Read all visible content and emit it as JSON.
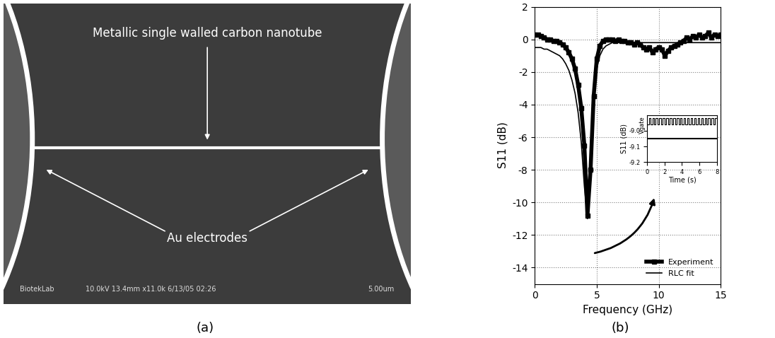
{
  "captions": [
    "(a)",
    "(b)"
  ],
  "image": {
    "nanotube_label": "Metallic single walled carbon nanotube",
    "electrodes_label": "Au electrodes",
    "info_bar": [
      "BiotekLab",
      "10.0kV 13.4mm x11.0k 6/13/05 02:26",
      "5.00um"
    ]
  },
  "chart_data": {
    "type": "line",
    "xlabel": "Frequency (GHz)",
    "ylabel": "S11 (dB)",
    "xlim": [
      0,
      15
    ],
    "xticks": [
      0,
      5,
      10,
      15
    ],
    "ylim": [
      -15,
      2
    ],
    "yticks": [
      -14,
      -12,
      -10,
      -8,
      -6,
      -4,
      -2,
      0,
      2
    ],
    "grid": true,
    "legend": "lower right",
    "x": [
      0,
      0.25,
      0.5,
      0.75,
      1,
      1.25,
      1.5,
      1.75,
      2,
      2.25,
      2.5,
      2.75,
      3,
      3.25,
      3.5,
      3.75,
      4,
      4.25,
      4.5,
      4.75,
      5,
      5.25,
      5.5,
      5.75,
      6,
      6.25,
      6.5,
      6.75,
      7,
      7.25,
      7.5,
      7.75,
      8,
      8.25,
      8.5,
      8.75,
      9,
      9.25,
      9.5,
      9.75,
      10,
      10.25,
      10.5,
      10.75,
      11,
      11.25,
      11.5,
      11.75,
      12,
      12.25,
      12.5,
      12.75,
      13,
      13.25,
      13.5,
      13.75,
      14,
      14.25,
      14.5,
      14.75,
      15
    ],
    "series": [
      {
        "name": "Experiment",
        "color": "#000000",
        "marker": "square",
        "line_style": "solid",
        "values": [
          0.3,
          0.3,
          0.2,
          0.1,
          0.0,
          0.0,
          -0.1,
          -0.1,
          -0.2,
          -0.3,
          -0.5,
          -0.8,
          -1.2,
          -1.8,
          -2.8,
          -4.2,
          -6.5,
          -10.8,
          -8.0,
          -3.5,
          -1.2,
          -0.4,
          -0.1,
          0.0,
          0.0,
          0.0,
          -0.1,
          0.0,
          -0.1,
          -0.1,
          -0.2,
          -0.2,
          -0.3,
          -0.2,
          -0.3,
          -0.5,
          -0.6,
          -0.5,
          -0.8,
          -0.6,
          -0.5,
          -0.6,
          -1.0,
          -0.7,
          -0.5,
          -0.4,
          -0.3,
          -0.2,
          -0.1,
          0.1,
          0.0,
          0.2,
          0.1,
          0.3,
          0.1,
          0.2,
          0.4,
          0.1,
          0.3,
          0.2,
          0.3
        ]
      },
      {
        "name": "RLC fit",
        "color": "#000000",
        "marker": "none",
        "line_style": "solid",
        "values": [
          -0.5,
          -0.5,
          -0.5,
          -0.6,
          -0.6,
          -0.7,
          -0.8,
          -0.9,
          -1.0,
          -1.2,
          -1.5,
          -1.9,
          -2.5,
          -3.3,
          -4.5,
          -6.3,
          -9.0,
          -11.0,
          -7.5,
          -3.8,
          -1.8,
          -1.0,
          -0.6,
          -0.4,
          -0.3,
          -0.2,
          -0.2,
          -0.2,
          -0.2,
          -0.2,
          -0.2,
          -0.2,
          -0.2,
          -0.2,
          -0.2,
          -0.2,
          -0.2,
          -0.2,
          -0.2,
          -0.2,
          -0.2,
          -0.2,
          -0.2,
          -0.2,
          -0.2,
          -0.2,
          -0.2,
          -0.2,
          -0.2,
          -0.2,
          -0.2,
          -0.2,
          -0.2,
          -0.2,
          -0.2,
          -0.2,
          -0.2,
          -0.2,
          -0.2,
          -0.2,
          -0.2
        ]
      }
    ],
    "inset": {
      "type": "line",
      "xlabel": "Time (s)",
      "ylabel": "S11 (dB)",
      "xlim": [
        0,
        8
      ],
      "xticks": [
        0,
        2,
        4,
        6,
        8
      ],
      "ylim": [
        -9.2,
        -8.9
      ],
      "yticks": [
        -9.2,
        -9.1,
        -9.0
      ],
      "x": [
        0,
        0.2,
        0.4,
        0.6,
        0.8,
        1.0,
        1.2,
        1.4,
        1.6,
        1.8,
        2.0,
        2.2,
        2.4,
        2.6,
        2.8,
        3.0,
        3.2,
        3.4,
        3.6,
        3.8,
        4.0,
        4.2,
        4.4,
        4.6,
        4.8,
        5.0,
        5.2,
        5.4,
        5.6,
        5.8,
        6.0,
        6.2,
        6.4,
        6.6,
        6.8,
        7.0,
        7.2,
        7.4,
        7.6,
        7.8,
        8.0
      ],
      "series": [
        {
          "name": "Vgate",
          "color": "#000000",
          "line_style": "steps",
          "values": [
            -8.96,
            -8.92,
            -8.96,
            -8.92,
            -8.96,
            -8.92,
            -8.96,
            -8.92,
            -8.96,
            -8.92,
            -8.96,
            -8.92,
            -8.96,
            -8.92,
            -8.96,
            -8.92,
            -8.96,
            -8.92,
            -8.96,
            -8.92,
            -8.96,
            -8.92,
            -8.96,
            -8.92,
            -8.96,
            -8.92,
            -8.96,
            -8.92,
            -8.96,
            -8.92,
            -8.96,
            -8.92,
            -8.96,
            -8.92,
            -8.96,
            -8.92,
            -8.96,
            -8.92,
            -8.96,
            -8.92,
            -8.96
          ]
        },
        {
          "name": "S11",
          "color": "#000000",
          "line_style": "solid",
          "values": [
            -9.05,
            -9.05,
            -9.05,
            -9.05,
            -9.05,
            -9.05,
            -9.05,
            -9.05,
            -9.05,
            -9.05,
            -9.05,
            -9.05,
            -9.05,
            -9.05,
            -9.05,
            -9.05,
            -9.05,
            -9.05,
            -9.05,
            -9.05,
            -9.05,
            -9.05,
            -9.05,
            -9.05,
            -9.05,
            -9.05,
            -9.05,
            -9.05,
            -9.05,
            -9.05,
            -9.05,
            -9.05,
            -9.05,
            -9.05,
            -9.05,
            -9.05,
            -9.05,
            -9.05,
            -9.05,
            -9.05,
            -9.05
          ]
        }
      ]
    }
  }
}
